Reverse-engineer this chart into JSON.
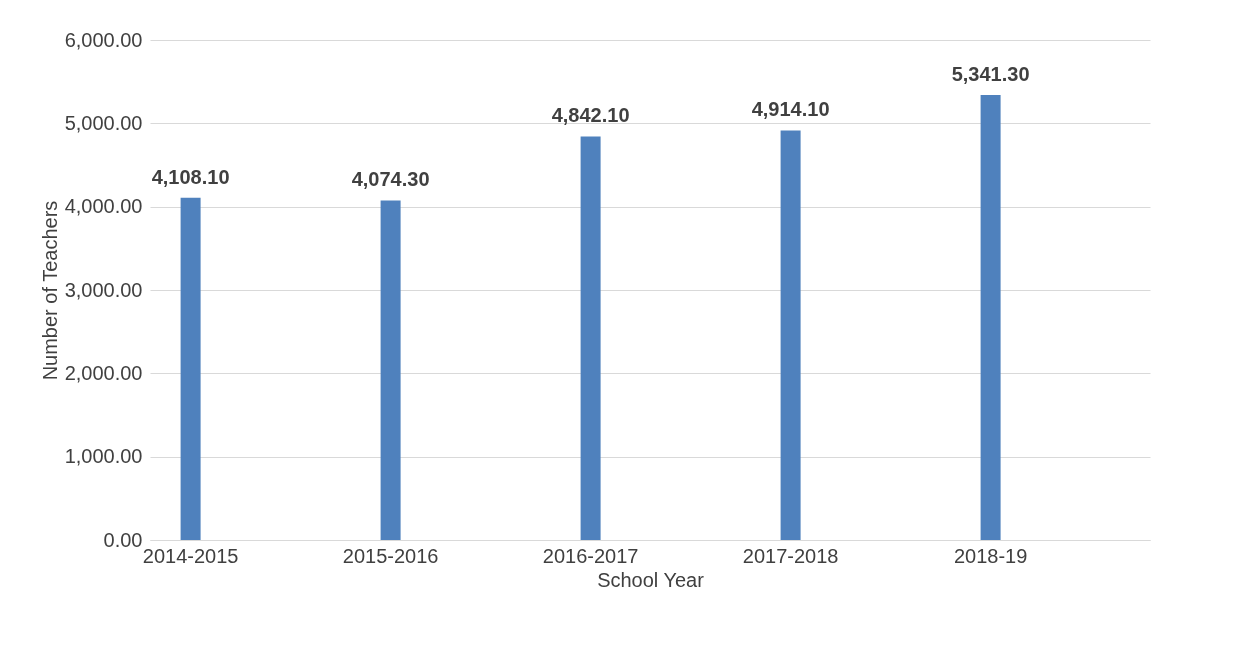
{
  "chart_data": {
    "type": "bar",
    "xlabel": "School Year",
    "ylabel": "Number of Teachers",
    "categories": [
      "2014-2015",
      "2015-2016",
      "2016-2017",
      "2017-2018",
      "2018-19"
    ],
    "series": [
      {
        "color": "#4f81bd",
        "values": [
          4108.1,
          4074.3,
          4842.1,
          4914.1,
          5341.3
        ]
      }
    ],
    "value_labels": [
      "4,108.10",
      "4,074.30",
      "4,842.10",
      "4,914.10",
      "5,341.30"
    ],
    "ylim": [
      0,
      6000
    ],
    "yticks": [
      {
        "value": 0,
        "label": "0.00"
      },
      {
        "value": 1000,
        "label": "1,000.00"
      },
      {
        "value": 2000,
        "label": "2,000.00"
      },
      {
        "value": 3000,
        "label": "3,000.00"
      },
      {
        "value": 4000,
        "label": "4,000.00"
      },
      {
        "value": 5000,
        "label": "5,000.00"
      },
      {
        "value": 6000,
        "label": "6,000.00"
      }
    ],
    "grid": "y"
  }
}
